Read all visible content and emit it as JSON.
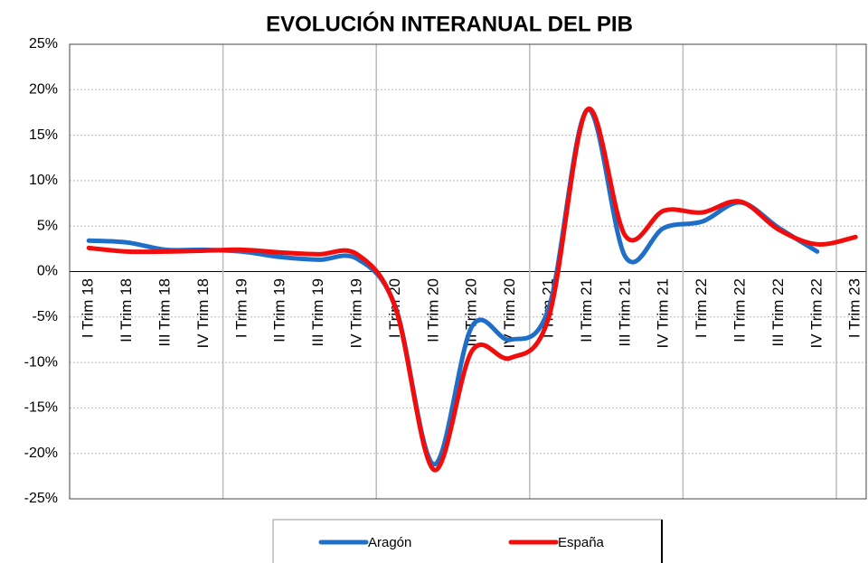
{
  "chart_data": {
    "type": "line",
    "title": "EVOLUCIÓN INTERANUAL DEL PIB",
    "categories": [
      "I Trim 18",
      "II Trim 18",
      "III Trim 18",
      "IV Trim 18",
      "I Trim 19",
      "II Trim 19",
      "III Trim 19",
      "IV Trim 19",
      "I Trim 20",
      "II Trim 20",
      "III Trim 20",
      "IV Trim 20",
      "I Trim 21",
      "II Trim 21",
      "III Trim 21",
      "IV Trim 21",
      "I Trim 22",
      "II Trim 22",
      "III Trim 22",
      "IV Trim 22",
      "I Trim 23"
    ],
    "series": [
      {
        "name": "Aragón",
        "color": "#1f6fc8",
        "values": [
          3.4,
          3.2,
          2.4,
          2.4,
          2.2,
          1.6,
          1.3,
          1.4,
          -3.9,
          -21.2,
          -6.0,
          -7.5,
          -4.0,
          17.8,
          1.6,
          4.8,
          5.5,
          7.6,
          4.8,
          2.2,
          null
        ]
      },
      {
        "name": "España",
        "color": "#f20d0d",
        "values": [
          2.6,
          2.2,
          2.2,
          2.3,
          2.4,
          2.1,
          1.9,
          1.9,
          -4.0,
          -21.8,
          -8.7,
          -9.5,
          -5.0,
          17.8,
          3.9,
          6.7,
          6.5,
          7.7,
          4.6,
          3.0,
          3.8
        ]
      }
    ],
    "ylim": [
      -25,
      25
    ],
    "yticks": [
      {
        "value": -25,
        "label": "-25%"
      },
      {
        "value": -20,
        "label": "-20%"
      },
      {
        "value": -15,
        "label": "-15%"
      },
      {
        "value": -10,
        "label": "-10%"
      },
      {
        "value": -5,
        "label": "-5%"
      },
      {
        "value": 0,
        "label": "0%"
      },
      {
        "value": 5,
        "label": "5%"
      },
      {
        "value": 10,
        "label": "10%"
      },
      {
        "value": 15,
        "label": "15%"
      },
      {
        "value": 20,
        "label": "20%"
      },
      {
        "value": 25,
        "label": "25%"
      }
    ],
    "grid": true
  }
}
